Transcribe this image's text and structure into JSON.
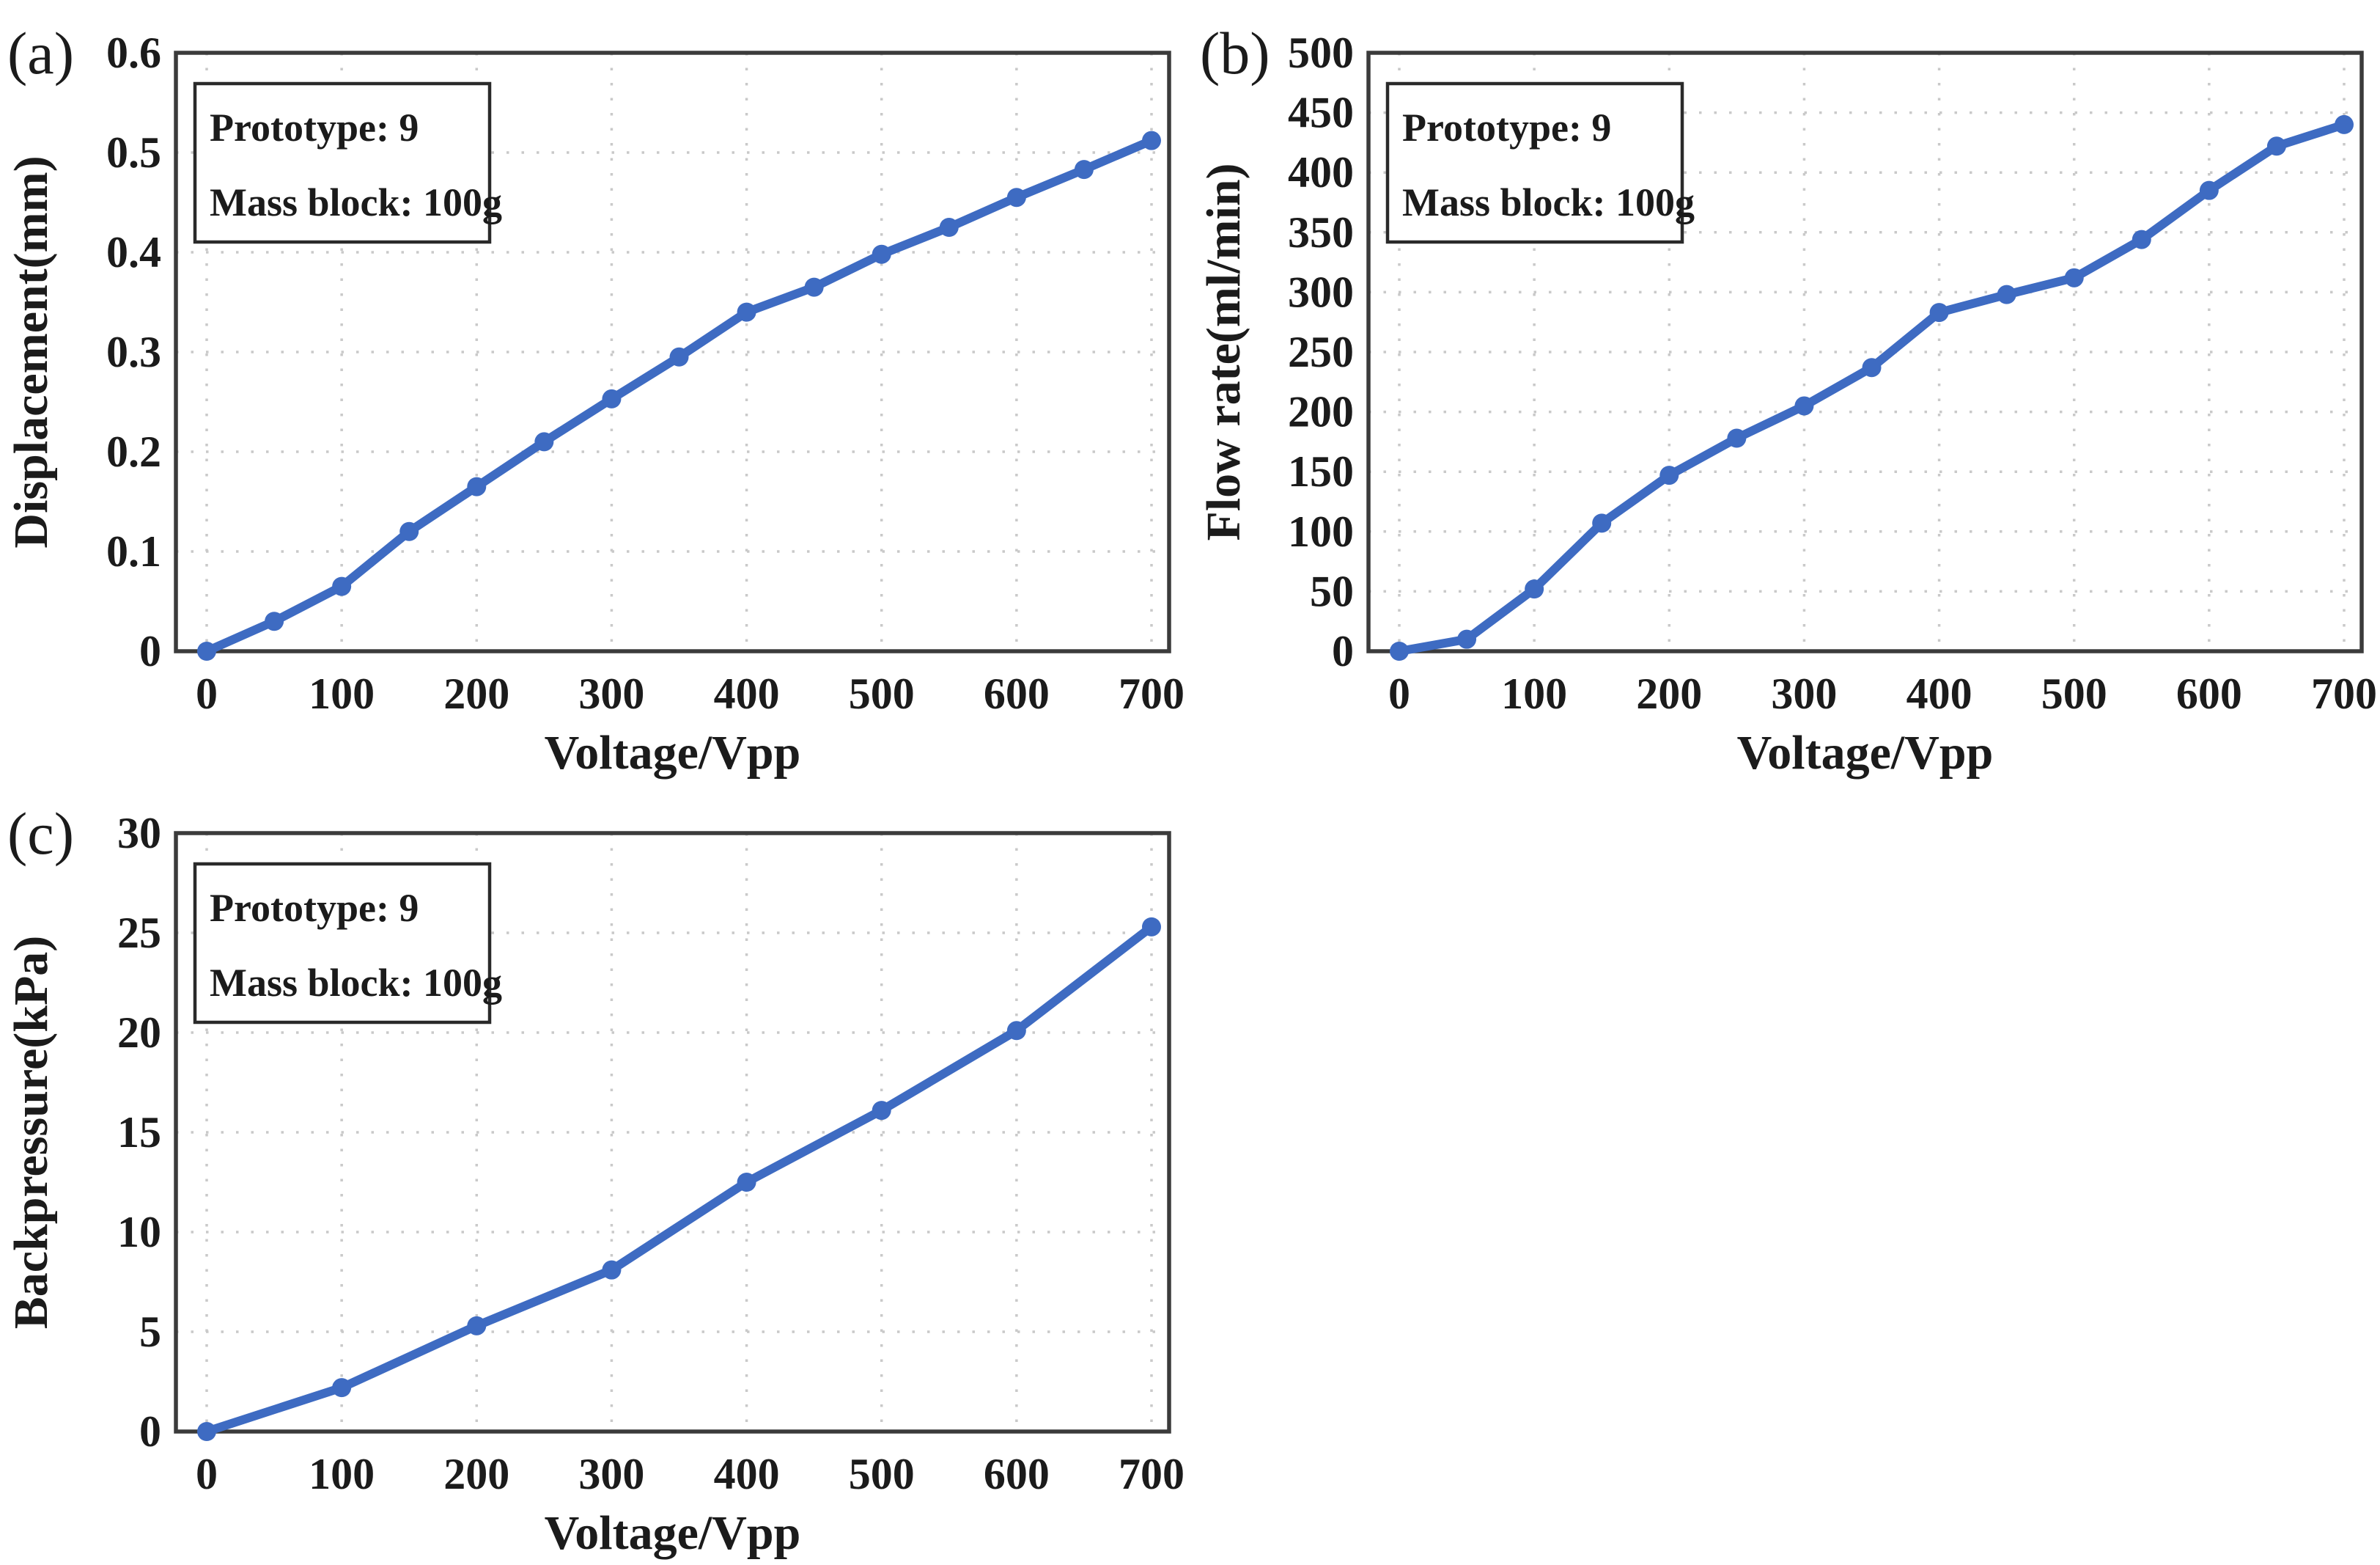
{
  "figure": {
    "background": "#ffffff",
    "line_color": "#3E6BC2",
    "grid_color": "#c9c9c9",
    "axis_color": "#3b3b3b",
    "text_color": "#1b1b1b",
    "annotation_border_color": "#2a2a2a",
    "annotation_fill": "#ffffff"
  },
  "chart_data": [
    {
      "id": "a",
      "type": "line",
      "panel_label": "(a)",
      "xlabel": "Voltage/Vpp",
      "ylabel": "Displacement(mm)",
      "annotation_lines": [
        "Prototype: 9",
        "Mass block: 100g"
      ],
      "x": [
        0,
        50,
        100,
        150,
        200,
        250,
        300,
        350,
        400,
        450,
        500,
        550,
        600,
        650,
        700
      ],
      "y": [
        0,
        0.03,
        0.065,
        0.12,
        0.165,
        0.21,
        0.253,
        0.295,
        0.34,
        0.365,
        0.398,
        0.425,
        0.455,
        0.483,
        0.512
      ],
      "xlim": [
        0,
        700
      ],
      "ylim": [
        0,
        0.6
      ],
      "xticks": [
        0,
        100,
        200,
        300,
        400,
        500,
        600,
        700
      ],
      "xtick_labels": [
        "0",
        "100",
        "200",
        "300",
        "400",
        "500",
        "600",
        "700"
      ],
      "yticks": [
        0,
        0.1,
        0.2,
        0.3,
        0.4,
        0.5,
        0.6
      ],
      "ytick_labels": [
        "0",
        "0.1",
        "0.2",
        "0.3",
        "0.4",
        "0.5",
        "0.6"
      ],
      "grid": true,
      "legend": null
    },
    {
      "id": "b",
      "type": "line",
      "panel_label": "(b)",
      "xlabel": "Voltage/Vpp",
      "ylabel": "Flow rate(ml/min)",
      "annotation_lines": [
        "Prototype: 9",
        "Mass block: 100g"
      ],
      "x": [
        0,
        50,
        100,
        150,
        200,
        250,
        300,
        350,
        400,
        450,
        500,
        550,
        600,
        650,
        700
      ],
      "y": [
        0,
        10,
        52,
        107,
        147,
        178,
        205,
        237,
        283,
        298,
        312,
        344,
        385,
        422,
        440
      ],
      "xlim": [
        0,
        700
      ],
      "ylim": [
        0,
        500
      ],
      "xticks": [
        0,
        100,
        200,
        300,
        400,
        500,
        600,
        700
      ],
      "xtick_labels": [
        "0",
        "100",
        "200",
        "300",
        "400",
        "500",
        "600",
        "700"
      ],
      "yticks": [
        0,
        50,
        100,
        150,
        200,
        250,
        300,
        350,
        400,
        450,
        500
      ],
      "ytick_labels": [
        "0",
        "50",
        "100",
        "150",
        "200",
        "250",
        "300",
        "350",
        "400",
        "450",
        "500"
      ],
      "grid": true,
      "legend": null
    },
    {
      "id": "c",
      "type": "line",
      "panel_label": "(c)",
      "xlabel": "Voltage/Vpp",
      "ylabel": "Backpressure(kPa)",
      "annotation_lines": [
        "Prototype: 9",
        "Mass block: 100g"
      ],
      "x": [
        0,
        100,
        200,
        300,
        400,
        500,
        600,
        700
      ],
      "y": [
        0,
        2.2,
        5.3,
        8.1,
        12.5,
        16.1,
        20.1,
        25.3
      ],
      "xlim": [
        0,
        700
      ],
      "ylim": [
        0,
        30
      ],
      "xticks": [
        0,
        100,
        200,
        300,
        400,
        500,
        600,
        700
      ],
      "xtick_labels": [
        "0",
        "100",
        "200",
        "300",
        "400",
        "500",
        "600",
        "700"
      ],
      "yticks": [
        0,
        5,
        10,
        15,
        20,
        25,
        30
      ],
      "ytick_labels": [
        "0",
        "5",
        "10",
        "15",
        "20",
        "25",
        "30"
      ],
      "grid": true,
      "legend": null
    }
  ]
}
